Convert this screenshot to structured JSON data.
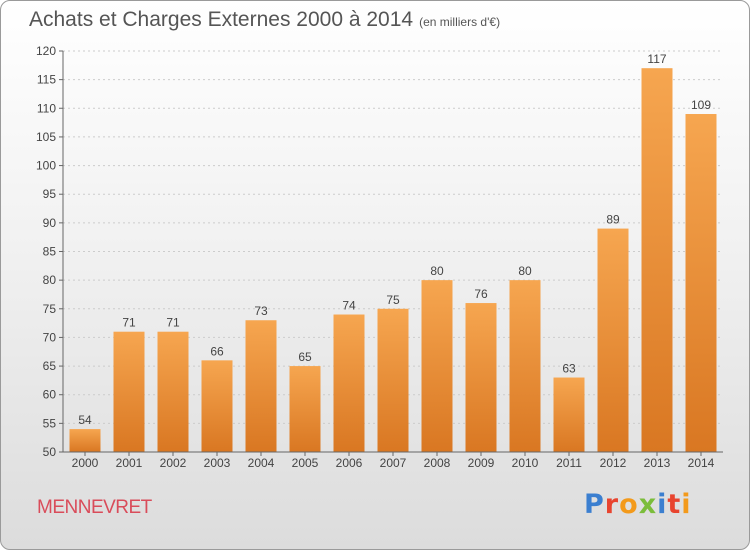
{
  "header": {
    "title": "Achats et Charges Externes 2000 à 2014",
    "subtitle": "(en milliers d'€)"
  },
  "footer": {
    "commune": "MENNEVRET",
    "logo_text": "Proxiti"
  },
  "colors": {
    "bar_light": "#f6a650",
    "bar_dark": "#d97722",
    "axis": "#666666",
    "grid": "#cccccc",
    "title": "#555555",
    "commune": "#d94c5a"
  },
  "chart_data": {
    "type": "bar",
    "title": "Achats et Charges Externes 2000 à 2014",
    "subtitle": "(en milliers d'€)",
    "xlabel": "",
    "ylabel": "",
    "categories": [
      "2000",
      "2001",
      "2002",
      "2003",
      "2004",
      "2005",
      "2006",
      "2007",
      "2008",
      "2009",
      "2010",
      "2011",
      "2012",
      "2013",
      "2014"
    ],
    "values": [
      54,
      71,
      71,
      66,
      73,
      65,
      74,
      75,
      80,
      76,
      80,
      63,
      89,
      117,
      109
    ],
    "ylim": [
      50,
      120
    ],
    "yticks": [
      50,
      55,
      60,
      65,
      70,
      75,
      80,
      85,
      90,
      95,
      100,
      105,
      110,
      115,
      120
    ],
    "grid": "dashed-horizontal",
    "legend": "none"
  }
}
